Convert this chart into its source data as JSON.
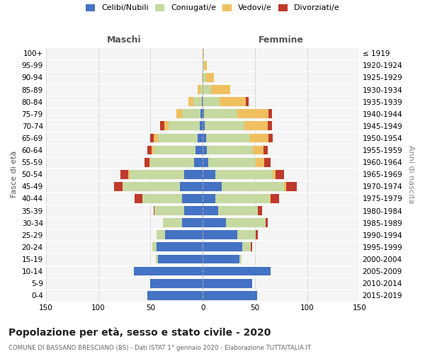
{
  "age_groups": [
    "0-4",
    "5-9",
    "10-14",
    "15-19",
    "20-24",
    "25-29",
    "30-34",
    "35-39",
    "40-44",
    "45-49",
    "50-54",
    "55-59",
    "60-64",
    "65-69",
    "70-74",
    "75-79",
    "80-84",
    "85-89",
    "90-94",
    "95-99",
    "100+"
  ],
  "birth_years": [
    "2015-2019",
    "2010-2014",
    "2005-2009",
    "2000-2004",
    "1995-1999",
    "1990-1994",
    "1985-1989",
    "1980-1984",
    "1975-1979",
    "1970-1974",
    "1965-1969",
    "1960-1964",
    "1955-1959",
    "1950-1954",
    "1945-1949",
    "1940-1944",
    "1935-1939",
    "1930-1934",
    "1925-1929",
    "1920-1924",
    "≤ 1919"
  ],
  "maschi_celibi": [
    53,
    50,
    66,
    43,
    44,
    36,
    20,
    18,
    20,
    22,
    18,
    8,
    7,
    5,
    3,
    2,
    1,
    0,
    0,
    0,
    0
  ],
  "maschi_coniugati": [
    0,
    0,
    0,
    2,
    4,
    8,
    18,
    28,
    38,
    55,
    52,
    42,
    40,
    38,
    30,
    18,
    8,
    2,
    0,
    0,
    0
  ],
  "maschi_vedovi": [
    0,
    0,
    0,
    0,
    0,
    0,
    0,
    0,
    0,
    0,
    1,
    1,
    2,
    4,
    4,
    5,
    5,
    3,
    1,
    0,
    0
  ],
  "maschi_divorziati": [
    0,
    0,
    0,
    0,
    0,
    0,
    0,
    1,
    7,
    8,
    8,
    5,
    4,
    3,
    4,
    0,
    0,
    0,
    0,
    0,
    0
  ],
  "femmine_celibi": [
    52,
    47,
    65,
    35,
    38,
    33,
    22,
    15,
    12,
    18,
    12,
    5,
    4,
    3,
    2,
    1,
    0,
    0,
    0,
    0,
    0
  ],
  "femmine_coniugati": [
    0,
    0,
    0,
    2,
    8,
    18,
    38,
    38,
    52,
    60,
    55,
    46,
    44,
    42,
    38,
    32,
    16,
    8,
    3,
    1,
    0
  ],
  "femmine_vedovi": [
    0,
    0,
    0,
    0,
    0,
    0,
    0,
    0,
    1,
    2,
    3,
    8,
    10,
    18,
    22,
    30,
    25,
    18,
    8,
    3,
    1
  ],
  "femmine_divorziati": [
    0,
    0,
    0,
    0,
    1,
    2,
    2,
    4,
    8,
    10,
    8,
    6,
    4,
    4,
    4,
    3,
    3,
    0,
    0,
    0,
    0
  ],
  "color_celibi": "#4472c4",
  "color_coniugati": "#c5d9a0",
  "color_vedovi": "#f0c060",
  "color_divorziati": "#c0392b",
  "title": "Popolazione per età, sesso e stato civile - 2020",
  "subtitle": "COMUNE DI BASSANO BRESCIANO (BS) - Dati ISTAT 1° gennaio 2020 - Elaborazione TUTTAITALIA.IT",
  "xlabel_left": "Maschi",
  "xlabel_right": "Femmine",
  "ylabel_left": "Fasce di età",
  "ylabel_right": "Anni di nascita",
  "xlim": 150,
  "bg_color": "#ffffff",
  "plot_bg_color": "#f5f5f5",
  "grid_color": "#cccccc"
}
